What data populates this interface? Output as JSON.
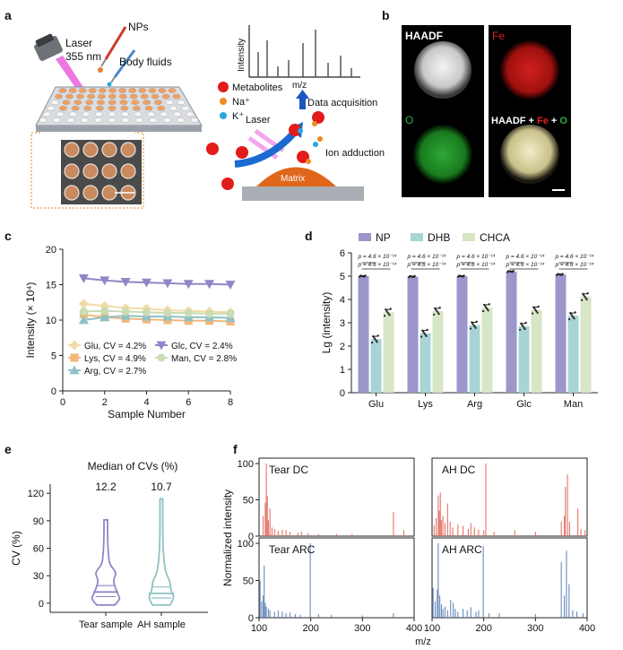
{
  "panel_labels": {
    "a": "a",
    "b": "b",
    "c": "c",
    "d": "d",
    "e": "e",
    "f": "f"
  },
  "schematic": {
    "nps": "NPs",
    "laser_top": "Laser",
    "laser_nm": "355 nm",
    "body_fluids": "Body fluids",
    "intensity_axis": "Intensity",
    "mz_axis": "m/z",
    "legend_metabolites": "Metabolites",
    "legend_na": "Na⁺",
    "legend_k": "K⁺",
    "data_acquisition": "Data acquisition",
    "laser_mid": "Laser",
    "ion_adduction": "Ion adduction",
    "matrix": "Matrix",
    "colors": {
      "metabolite": "#e21b1b",
      "na": "#f08a24",
      "k": "#29a8e0",
      "matrix": "#e0661c",
      "arrow": "#1a6ad0",
      "laser": "#e84bd9",
      "plate": "#9aa0a8",
      "well": "#f0a060"
    }
  },
  "micrographs": {
    "haadf": "HAADF",
    "fe": "Fe",
    "o": "O",
    "merge_a": "HAADF + ",
    "merge_fe": "Fe",
    "merge_plus": " + ",
    "merge_o": "O"
  },
  "chart_data": [
    {
      "id": "c",
      "type": "line",
      "title": "",
      "xlabel": "Sample Number",
      "ylabel": "Intensity (× 10⁴)",
      "xlim": [
        0,
        8
      ],
      "ylim": [
        0,
        20
      ],
      "xticks": [
        "0",
        "2",
        "4",
        "6",
        "8"
      ],
      "yticks": [
        "0",
        "5",
        "10",
        "15",
        "20"
      ],
      "x": [
        1,
        2,
        3,
        4,
        5,
        6,
        7,
        8
      ],
      "series": [
        {
          "name": "Glu, CV = 4.2%",
          "color": "#f2dba6",
          "marker": "diamond",
          "values": [
            12.3,
            12.0,
            11.7,
            11.6,
            11.4,
            11.3,
            11.2,
            11.1
          ]
        },
        {
          "name": "Lys, CV = 4.9%",
          "color": "#f3b87a",
          "marker": "square",
          "values": [
            10.8,
            10.4,
            10.2,
            10.1,
            10.0,
            9.9,
            9.9,
            9.8
          ]
        },
        {
          "name": "Arg, CV = 2.7%",
          "color": "#8fc2c4",
          "marker": "triangle-up",
          "values": [
            10.0,
            10.4,
            10.6,
            10.5,
            10.5,
            10.4,
            10.4,
            10.3
          ]
        },
        {
          "name": "Glc, CV = 2.4%",
          "color": "#8f88c6",
          "marker": "triangle-down",
          "values": [
            15.9,
            15.6,
            15.4,
            15.3,
            15.2,
            15.1,
            15.1,
            15.0
          ]
        },
        {
          "name": "Man, CV = 2.8%",
          "color": "#c9dcb3",
          "marker": "circle",
          "values": [
            11.2,
            11.3,
            11.2,
            11.1,
            11.0,
            11.0,
            10.9,
            10.9
          ]
        }
      ]
    },
    {
      "id": "d",
      "type": "bar",
      "xlabel": "",
      "ylabel": "Lg (intensity)",
      "ylim": [
        0,
        6
      ],
      "yticks": [
        "0",
        "1",
        "2",
        "3",
        "4",
        "5",
        "6"
      ],
      "categories": [
        "Glu",
        "Lys",
        "Arg",
        "Glc",
        "Man"
      ],
      "series": [
        {
          "name": "NP",
          "color": "#9b97cb",
          "values": [
            5.0,
            4.98,
            5.0,
            5.2,
            5.07
          ]
        },
        {
          "name": "DHB",
          "color": "#a8d4d5",
          "values": [
            2.3,
            2.55,
            2.9,
            2.85,
            3.3
          ]
        },
        {
          "name": "CHCA",
          "color": "#d7e6c6",
          "values": [
            3.45,
            3.5,
            3.65,
            3.55,
            4.12
          ]
        }
      ],
      "annotation": "p = 4.6 × 10⁻¹⁴"
    },
    {
      "id": "e",
      "type": "violin",
      "title": "Median of CVs (%)",
      "ylabel": "CV (%)",
      "ylim": [
        -10,
        130
      ],
      "yticks": [
        "0",
        "30",
        "60",
        "90",
        "120"
      ],
      "categories": [
        "Tear sample",
        "AH sample"
      ],
      "medians": [
        "12.2",
        "10.7"
      ],
      "median_values": [
        12.2,
        10.7
      ],
      "max_values": [
        91,
        114
      ],
      "colors": [
        "#8f88c6",
        "#8fc2c4"
      ]
    },
    {
      "id": "f",
      "type": "spectra",
      "ylabel": "Normalized intensity",
      "xlabel": "m/z",
      "xlim": [
        100,
        400
      ],
      "ylim": [
        0,
        100
      ],
      "xticks": [
        "100",
        "200",
        "300",
        "400"
      ],
      "yticks": [
        "0",
        "50",
        "100"
      ],
      "panels": [
        {
          "name": "Tear DC",
          "color": "#e0675a",
          "peaks": [
            [
              108,
              28
            ],
            [
              112,
              46
            ],
            [
              114,
              100
            ],
            [
              116,
              55
            ],
            [
              118,
              22
            ],
            [
              121,
              38
            ],
            [
              125,
              12
            ],
            [
              130,
              10
            ],
            [
              137,
              7
            ],
            [
              145,
              9
            ],
            [
              152,
              8
            ],
            [
              160,
              6
            ],
            [
              175,
              5
            ],
            [
              182,
              6
            ],
            [
              195,
              4
            ],
            [
              215,
              3
            ],
            [
              250,
              3
            ],
            [
              280,
              3
            ],
            [
              360,
              33
            ],
            [
              380,
              8
            ]
          ]
        },
        {
          "name": "AH DC",
          "color": "#e0675a",
          "peaks": [
            [
              104,
              15
            ],
            [
              108,
              25
            ],
            [
              112,
              56
            ],
            [
              114,
              35
            ],
            [
              116,
              60
            ],
            [
              118,
              22
            ],
            [
              121,
              28
            ],
            [
              125,
              18
            ],
            [
              130,
              45
            ],
            [
              135,
              20
            ],
            [
              140,
              12
            ],
            [
              150,
              16
            ],
            [
              160,
              14
            ],
            [
              170,
              10
            ],
            [
              175,
              18
            ],
            [
              182,
              12
            ],
            [
              190,
              9
            ],
            [
              200,
              8
            ],
            [
              204,
              100
            ],
            [
              220,
              6
            ],
            [
              260,
              8
            ],
            [
              300,
              6
            ],
            [
              350,
              20
            ],
            [
              356,
              28
            ],
            [
              358,
              68
            ],
            [
              362,
              85
            ],
            [
              366,
              20
            ],
            [
              382,
              38
            ],
            [
              388,
              10
            ],
            [
              396,
              8
            ]
          ]
        },
        {
          "name": "Tear ARC",
          "color": "#5b7fb5",
          "peaks": [
            [
              102,
              50
            ],
            [
              105,
              22
            ],
            [
              108,
              30
            ],
            [
              110,
              70
            ],
            [
              112,
              20
            ],
            [
              114,
              15
            ],
            [
              118,
              12
            ],
            [
              121,
              10
            ],
            [
              130,
              8
            ],
            [
              137,
              10
            ],
            [
              145,
              8
            ],
            [
              152,
              6
            ],
            [
              160,
              7
            ],
            [
              170,
              5
            ],
            [
              180,
              4
            ],
            [
              199,
              100
            ],
            [
              215,
              5
            ],
            [
              240,
              4
            ],
            [
              300,
              3
            ],
            [
              360,
              6
            ]
          ]
        },
        {
          "name": "AH ARC",
          "color": "#5b7fb5",
          "peaks": [
            [
              102,
              40
            ],
            [
              106,
              22
            ],
            [
              110,
              38
            ],
            [
              112,
              100
            ],
            [
              115,
              30
            ],
            [
              118,
              18
            ],
            [
              121,
              12
            ],
            [
              125,
              15
            ],
            [
              130,
              10
            ],
            [
              136,
              24
            ],
            [
              141,
              20
            ],
            [
              145,
              12
            ],
            [
              150,
              8
            ],
            [
              160,
              12
            ],
            [
              168,
              10
            ],
            [
              175,
              14
            ],
            [
              185,
              8
            ],
            [
              190,
              10
            ],
            [
              199,
              96
            ],
            [
              210,
              6
            ],
            [
              230,
              6
            ],
            [
              300,
              5
            ],
            [
              350,
              75
            ],
            [
              356,
              30
            ],
            [
              360,
              90
            ],
            [
              365,
              45
            ],
            [
              372,
              10
            ],
            [
              380,
              8
            ],
            [
              392,
              6
            ]
          ]
        }
      ]
    }
  ]
}
